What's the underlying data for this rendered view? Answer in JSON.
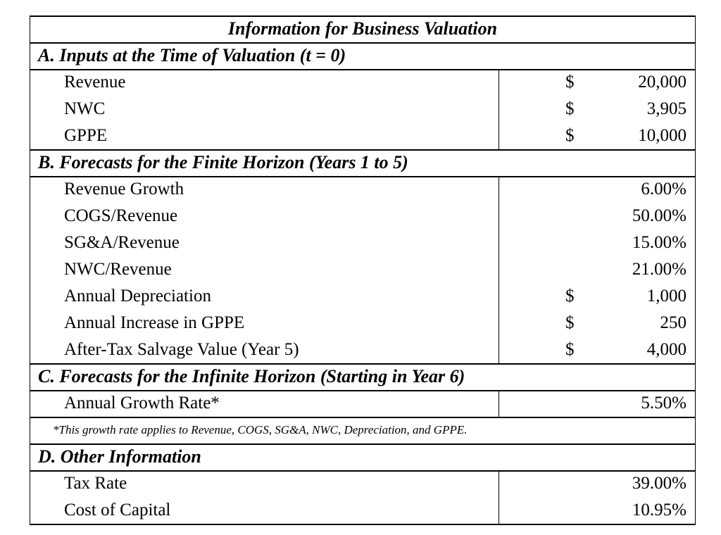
{
  "title": "Information for Business Valuation",
  "sections": [
    {
      "heading": "A. Inputs at the Time of Valuation (t = 0)",
      "rows": [
        {
          "label": "Revenue",
          "currency": "$",
          "value": "20,000"
        },
        {
          "label": "NWC",
          "currency": "$",
          "value": "3,905"
        },
        {
          "label": "GPPE",
          "currency": "$",
          "value": "10,000"
        }
      ]
    },
    {
      "heading": "B. Forecasts for the Finite Horizon (Years 1 to 5)",
      "rows": [
        {
          "label": "Revenue Growth",
          "value": "6.00%"
        },
        {
          "label": "COGS/Revenue",
          "value": "50.00%"
        },
        {
          "label": "SG&A/Revenue",
          "value": "15.00%"
        },
        {
          "label": "NWC/Revenue",
          "value": "21.00%"
        },
        {
          "label": "Annual Depreciation",
          "currency": "$",
          "value": "1,000"
        },
        {
          "label": "Annual Increase in GPPE",
          "currency": "$",
          "value": "250"
        },
        {
          "label": "After-Tax Salvage Value (Year 5)",
          "currency": "$",
          "value": "4,000"
        }
      ]
    },
    {
      "heading": "C. Forecasts for the Infinite Horizon (Starting in Year 6)",
      "rows": [
        {
          "label": "Annual Growth Rate*",
          "value": "5.50%"
        }
      ],
      "note": "*This growth rate applies to Revenue, COGS, SG&A, NWC, Depreciation, and GPPE."
    },
    {
      "heading": "D. Other Information",
      "rows": [
        {
          "label": "Tax Rate",
          "value": "39.00%"
        },
        {
          "label": "Cost of Capital",
          "value": "10.95%"
        }
      ]
    }
  ]
}
